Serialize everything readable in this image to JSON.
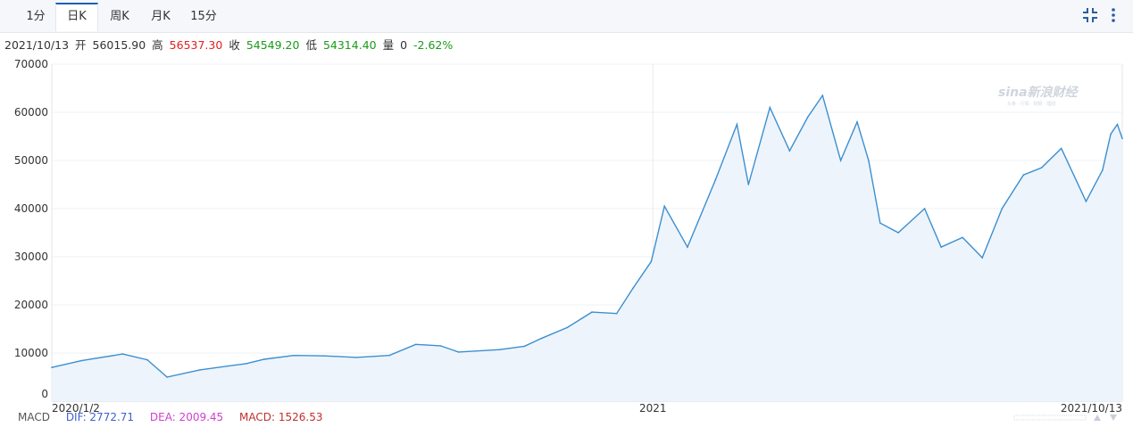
{
  "tabs": [
    {
      "label": "1分",
      "active": false
    },
    {
      "label": "日K",
      "active": true
    },
    {
      "label": "周K",
      "active": false
    },
    {
      "label": "月K",
      "active": false
    },
    {
      "label": "15分",
      "active": false
    }
  ],
  "toolbar": {
    "collapse_icon": "collapse-icon",
    "more_icon": "more-vertical-icon"
  },
  "quote": {
    "date": "2021/10/13",
    "open_label": "开",
    "open": "56015.90",
    "high_label": "高",
    "high": "56537.30",
    "close_label": "收",
    "close": "54549.20",
    "low_label": "低",
    "low": "54314.40",
    "volume_label": "量",
    "volume": "0",
    "change": "-2.62%"
  },
  "watermark": {
    "text": "sina新浪财经",
    "sub": "头条 · 行情 · 财报 · 理财"
  },
  "macd": {
    "label": "MACD",
    "dif": "DIF: 2772.71",
    "dea": "DEA: 2009.45",
    "macd": "MACD: 1526.53"
  },
  "colors": {
    "line": "#3b8fd0",
    "area": "#eef4fb",
    "up": "#e02020",
    "down": "#1a9a1a",
    "dif": "#4060d0",
    "dea": "#d040d0",
    "macdv": "#c03030"
  },
  "chart_data": {
    "type": "area",
    "ylim": [
      0,
      70000
    ],
    "yticks": [
      "0",
      "10000",
      "20000",
      "30000",
      "40000",
      "50000",
      "60000",
      "70000"
    ],
    "xticks": [
      {
        "label": "2020/1/2",
        "date": "2020-01-02"
      },
      {
        "label": "2021",
        "date": "2021-01-01"
      },
      {
        "label": "2021/10/13",
        "date": "2021-10-13"
      }
    ],
    "x_start": "2020-01-02",
    "x_end": "2021-10-13",
    "series": [
      {
        "points": [
          [
            "2020-01-02",
            7000
          ],
          [
            "2020-01-20",
            8400
          ],
          [
            "2020-02-14",
            9800
          ],
          [
            "2020-02-29",
            8600
          ],
          [
            "2020-03-12",
            5000
          ],
          [
            "2020-04-01",
            6500
          ],
          [
            "2020-04-29",
            7800
          ],
          [
            "2020-05-10",
            8700
          ],
          [
            "2020-05-28",
            9500
          ],
          [
            "2020-06-15",
            9400
          ],
          [
            "2020-07-05",
            9100
          ],
          [
            "2020-07-25",
            9500
          ],
          [
            "2020-08-10",
            11800
          ],
          [
            "2020-08-25",
            11500
          ],
          [
            "2020-09-05",
            10200
          ],
          [
            "2020-09-30",
            10700
          ],
          [
            "2020-10-15",
            11400
          ],
          [
            "2020-10-25",
            13000
          ],
          [
            "2020-11-10",
            15300
          ],
          [
            "2020-11-25",
            18500
          ],
          [
            "2020-12-10",
            18200
          ],
          [
            "2020-12-20",
            23500
          ],
          [
            "2020-12-31",
            29000
          ],
          [
            "2021-01-08",
            40500
          ],
          [
            "2021-01-22",
            32000
          ],
          [
            "2021-02-08",
            46000
          ],
          [
            "2021-02-21",
            57500
          ],
          [
            "2021-02-28",
            45000
          ],
          [
            "2021-03-13",
            61000
          ],
          [
            "2021-03-25",
            52000
          ],
          [
            "2021-04-05",
            59000
          ],
          [
            "2021-04-14",
            63500
          ],
          [
            "2021-04-25",
            50000
          ],
          [
            "2021-05-05",
            58000
          ],
          [
            "2021-05-12",
            50000
          ],
          [
            "2021-05-19",
            37000
          ],
          [
            "2021-05-30",
            35000
          ],
          [
            "2021-06-15",
            40000
          ],
          [
            "2021-06-25",
            32000
          ],
          [
            "2021-07-08",
            34000
          ],
          [
            "2021-07-20",
            29800
          ],
          [
            "2021-08-01",
            40000
          ],
          [
            "2021-08-14",
            47000
          ],
          [
            "2021-08-25",
            48500
          ],
          [
            "2021-09-06",
            52500
          ],
          [
            "2021-09-21",
            41500
          ],
          [
            "2021-10-01",
            48000
          ],
          [
            "2021-10-06",
            55500
          ],
          [
            "2021-10-10",
            57500
          ],
          [
            "2021-10-13",
            54549
          ]
        ]
      }
    ]
  }
}
